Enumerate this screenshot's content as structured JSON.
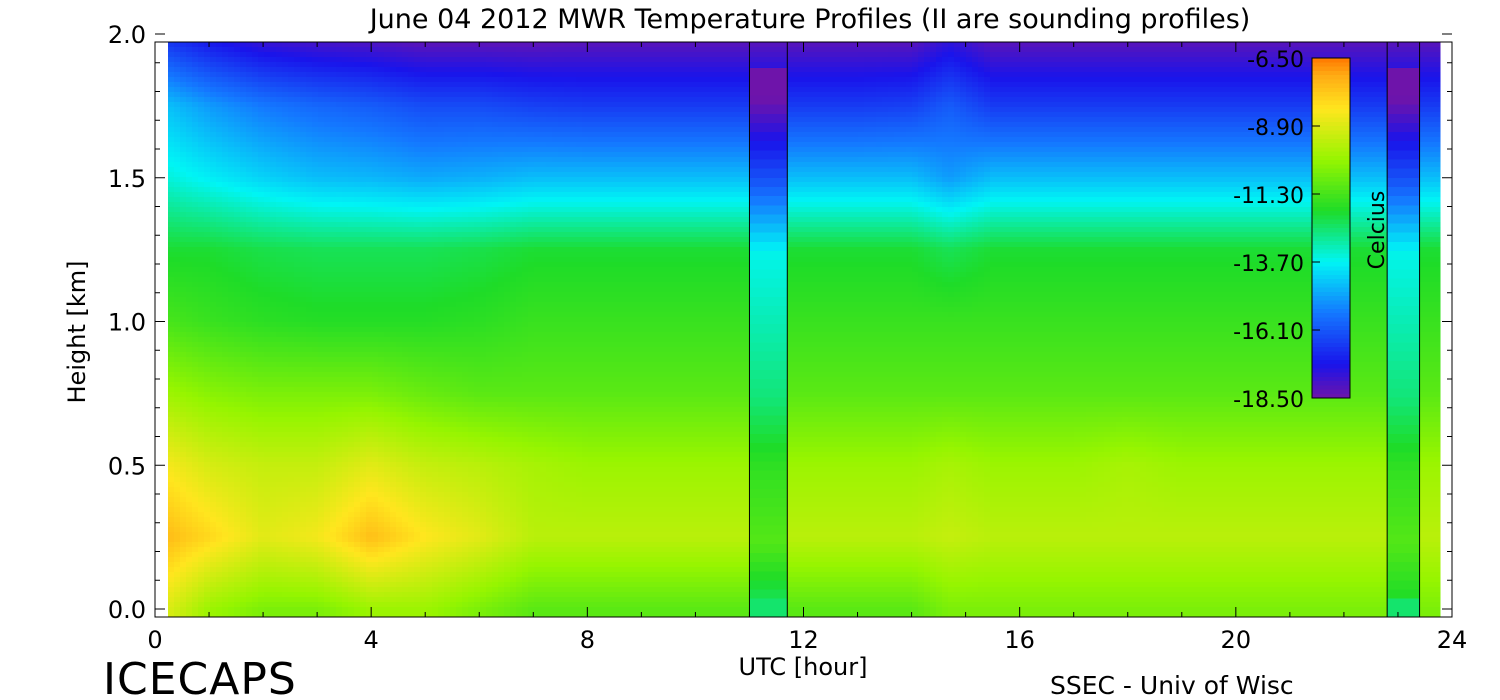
{
  "chart_data": {
    "type": "heatmap",
    "title": "June 04 2012 MWR Temperature Profiles (II are sounding profiles)",
    "xlabel": "UTC [hour]",
    "ylabel": "Height [km]",
    "xlim": [
      0,
      24
    ],
    "ylim": [
      0,
      2
    ],
    "x_ticks": [
      "0",
      "4",
      "8",
      "12",
      "16",
      "20",
      "24"
    ],
    "y_ticks": [
      "0.0",
      "0.5",
      "1.0",
      "1.5",
      "2.0"
    ],
    "colorbar": {
      "label": "Celcius",
      "ticks": [
        "-6.50",
        "-8.90",
        "-11.30",
        "-13.70",
        "-16.10",
        "-18.50"
      ],
      "min": -18.5,
      "max": -6.5
    },
    "temperature_field": {
      "hours": [
        0.3,
        1,
        2,
        3,
        4,
        5,
        6,
        7,
        8,
        9,
        10,
        11,
        12,
        13,
        14,
        14.7,
        15.5,
        16,
        17,
        18,
        19,
        20,
        21,
        22,
        23,
        23.7
      ],
      "heights_km": [
        0.0,
        0.25,
        0.5,
        0.75,
        1.0,
        1.25,
        1.5,
        1.75,
        2.0
      ],
      "values_celsius": [
        [
          -9.0,
          -10.0,
          -10.5,
          -10.5,
          -10.0,
          -10.0,
          -10.5,
          -11.0,
          -11.0,
          -11.0,
          -11.0,
          -11.0,
          -11.0,
          -11.0,
          -11.0,
          -10.5,
          -10.5,
          -10.5,
          -10.5,
          -10.5,
          -10.5,
          -10.5,
          -10.5,
          -10.5,
          -10.5,
          -10.5
        ],
        [
          -7.5,
          -8.0,
          -8.8,
          -8.5,
          -7.5,
          -8.3,
          -8.8,
          -9.5,
          -9.5,
          -9.5,
          -9.5,
          -9.5,
          -9.5,
          -9.5,
          -9.5,
          -9.3,
          -9.5,
          -9.5,
          -9.5,
          -9.5,
          -9.5,
          -9.5,
          -9.5,
          -9.5,
          -9.5,
          -9.5
        ],
        [
          -8.5,
          -9.0,
          -9.3,
          -9.3,
          -8.8,
          -9.3,
          -9.5,
          -9.8,
          -10.0,
          -10.0,
          -10.0,
          -10.0,
          -10.0,
          -10.0,
          -10.0,
          -9.8,
          -10.0,
          -10.0,
          -10.0,
          -9.8,
          -10.0,
          -10.0,
          -10.0,
          -10.0,
          -10.0,
          -10.0
        ],
        [
          -10.0,
          -10.3,
          -10.5,
          -10.5,
          -10.5,
          -10.8,
          -11.0,
          -11.0,
          -11.0,
          -11.0,
          -11.0,
          -11.0,
          -11.0,
          -11.0,
          -11.0,
          -11.0,
          -11.0,
          -11.0,
          -11.0,
          -11.0,
          -11.0,
          -11.0,
          -11.0,
          -11.0,
          -11.0,
          -11.0
        ],
        [
          -11.3,
          -11.5,
          -11.7,
          -11.8,
          -11.8,
          -11.8,
          -11.7,
          -11.5,
          -11.5,
          -11.5,
          -11.5,
          -11.5,
          -11.5,
          -11.5,
          -11.5,
          -11.5,
          -11.5,
          -11.5,
          -11.5,
          -11.5,
          -11.5,
          -11.5,
          -11.5,
          -11.5,
          -11.5,
          -11.5
        ],
        [
          -12.0,
          -12.0,
          -12.2,
          -12.3,
          -12.3,
          -12.3,
          -12.2,
          -12.0,
          -12.0,
          -12.0,
          -12.0,
          -12.0,
          -12.0,
          -12.0,
          -12.0,
          -12.3,
          -12.0,
          -12.0,
          -12.0,
          -12.0,
          -12.0,
          -12.0,
          -12.0,
          -12.0,
          -12.0,
          -12.0
        ],
        [
          -13.5,
          -13.8,
          -14.2,
          -14.5,
          -14.6,
          -14.8,
          -14.7,
          -14.5,
          -14.5,
          -14.5,
          -14.5,
          -14.5,
          -14.5,
          -14.5,
          -14.5,
          -15.0,
          -14.5,
          -14.5,
          -14.5,
          -14.5,
          -14.5,
          -14.5,
          -14.5,
          -14.5,
          -14.5,
          -14.5
        ],
        [
          -14.5,
          -15.0,
          -15.5,
          -15.8,
          -16.0,
          -16.3,
          -16.3,
          -16.5,
          -16.6,
          -16.6,
          -16.6,
          -16.6,
          -16.6,
          -16.6,
          -16.5,
          -16.0,
          -16.6,
          -16.6,
          -16.6,
          -16.6,
          -16.6,
          -16.6,
          -16.6,
          -16.6,
          -16.6,
          -16.6
        ],
        [
          -17.0,
          -17.5,
          -18.0,
          -18.2,
          -18.3,
          -18.5,
          -18.5,
          -18.5,
          -18.4,
          -18.4,
          -18.4,
          -18.4,
          -18.4,
          -18.4,
          -18.4,
          -17.8,
          -18.4,
          -18.4,
          -18.4,
          -18.4,
          -18.4,
          -18.4,
          -18.4,
          -18.4,
          -18.4,
          -18.4
        ]
      ]
    },
    "sounding_profiles": [
      {
        "start_hour": 11.0,
        "end_hour": 11.7
      },
      {
        "start_hour": 22.8,
        "end_hour": 23.4
      }
    ],
    "grid": false,
    "legend": "colorbar-inside-top-right"
  },
  "footer": {
    "left_text": "ICECAPS",
    "right_text": "SSEC - Univ of Wisc"
  }
}
